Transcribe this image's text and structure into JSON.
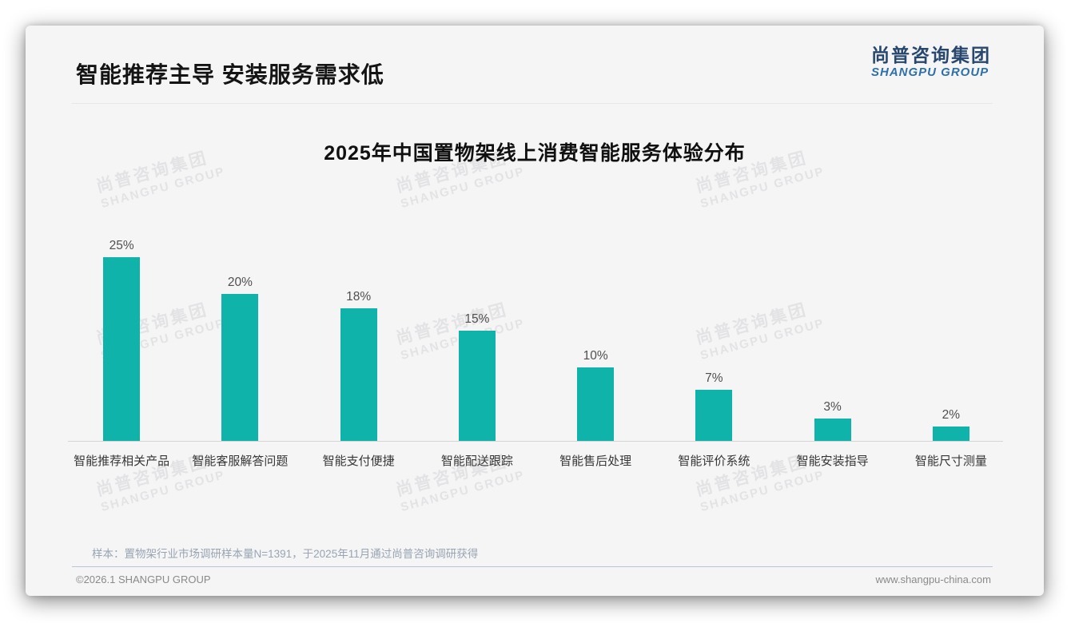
{
  "page": {
    "header": {
      "title": "智能推荐主导 安装服务需求低"
    },
    "logo": {
      "cn": "尚普咨询集团",
      "en": "SHANGPU GROUP"
    },
    "watermark": {
      "line1": "尚普咨询集团",
      "line2": "SHANGPU GROUP"
    },
    "footer": {
      "sample_note": "样本：置物架行业市场调研样本量N=1391，于2025年11月通过尚普咨询调研获得",
      "copyright": "©2026.1 SHANGPU GROUP",
      "website": "www.shangpu-china.com"
    }
  },
  "chart_data": {
    "type": "bar",
    "title": "2025年中国置物架线上消费智能服务体验分布",
    "categories": [
      "智能推荐相关产品",
      "智能客服解答问题",
      "智能支付便捷",
      "智能配送跟踪",
      "智能售后处理",
      "智能评价系统",
      "智能安装指导",
      "智能尺寸测量"
    ],
    "values": [
      25,
      20,
      18,
      15,
      10,
      7,
      3,
      2
    ],
    "unit": "%",
    "value_labels": [
      "25%",
      "20%",
      "18%",
      "15%",
      "10%",
      "7%",
      "3%",
      "2%"
    ],
    "xlabel": "",
    "ylabel": "",
    "ylim": [
      0,
      27
    ],
    "grid": false,
    "legend": false,
    "bar_color": "#10B3A9"
  },
  "colors": {
    "bar": "#10B3A9",
    "logo_cn": "#27476E",
    "logo_en": "#2D6FAD",
    "footer_divider": "#B9C6D6",
    "note_text": "#98A4B3"
  }
}
